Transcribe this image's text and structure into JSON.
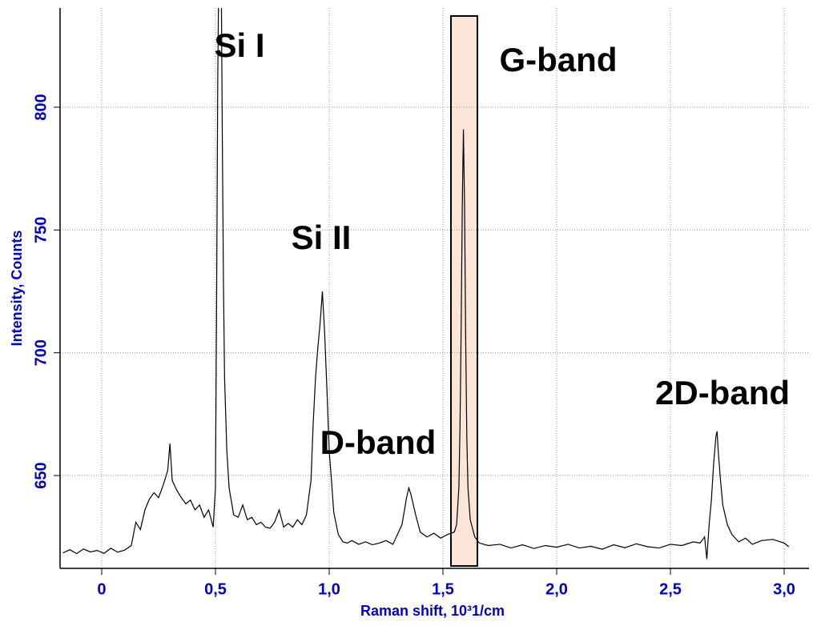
{
  "chart_data": {
    "type": "line",
    "x_label": "Raman shift, 10³1/cm",
    "y_label": "Intensity, Counts",
    "annotations": [
      "Si I",
      "Si II",
      "D-band",
      "G-band",
      "2D-band"
    ],
    "x": [
      -0.17,
      -0.14,
      -0.11,
      -0.08,
      -0.05,
      -0.02,
      0.01,
      0.04,
      0.07,
      0.1,
      0.13,
      0.15,
      0.17,
      0.19,
      0.21,
      0.23,
      0.25,
      0.27,
      0.29,
      0.3,
      0.31,
      0.33,
      0.35,
      0.37,
      0.39,
      0.41,
      0.43,
      0.45,
      0.47,
      0.49,
      0.5,
      0.505,
      0.51,
      0.515,
      0.525,
      0.53,
      0.535,
      0.54,
      0.55,
      0.56,
      0.58,
      0.6,
      0.62,
      0.64,
      0.66,
      0.68,
      0.7,
      0.72,
      0.74,
      0.76,
      0.78,
      0.8,
      0.82,
      0.84,
      0.86,
      0.88,
      0.9,
      0.92,
      0.93,
      0.94,
      0.95,
      0.96,
      0.97,
      0.98,
      0.99,
      1.0,
      1.01,
      1.02,
      1.04,
      1.06,
      1.08,
      1.1,
      1.13,
      1.16,
      1.19,
      1.22,
      1.25,
      1.28,
      1.3,
      1.32,
      1.34,
      1.35,
      1.36,
      1.38,
      1.4,
      1.43,
      1.46,
      1.49,
      1.52,
      1.55,
      1.56,
      1.57,
      1.575,
      1.58,
      1.585,
      1.59,
      1.595,
      1.6,
      1.605,
      1.61,
      1.62,
      1.64,
      1.66,
      1.7,
      1.75,
      1.8,
      1.85,
      1.9,
      1.95,
      2.0,
      2.05,
      2.1,
      2.15,
      2.2,
      2.25,
      2.3,
      2.35,
      2.4,
      2.45,
      2.5,
      2.55,
      2.6,
      2.63,
      2.65,
      2.66,
      2.67,
      2.68,
      2.69,
      2.7,
      2.705,
      2.71,
      2.72,
      2.73,
      2.75,
      2.77,
      2.8,
      2.83,
      2.86,
      2.9,
      2.95,
      3.0,
      3.02
    ],
    "series": [
      {
        "color": "#000000",
        "values": [
          618.5,
          619.8,
          618.2,
          620.1,
          618.9,
          619.5,
          618.3,
          620.4,
          618.8,
          619.6,
          621.5,
          631,
          628,
          636,
          640.5,
          643,
          641,
          646,
          652,
          663,
          648,
          644,
          641,
          638.5,
          640,
          636,
          638,
          633,
          636,
          629,
          645,
          720,
          810,
          860,
          860,
          790,
          730,
          690,
          660,
          645,
          634,
          633,
          638,
          632,
          633,
          630,
          631,
          629,
          628.5,
          631,
          636,
          629,
          630.5,
          629,
          632,
          630,
          634,
          648,
          672,
          690,
          702,
          712,
          725,
          708,
          685,
          660,
          648,
          635,
          626,
          623,
          622.5,
          623.5,
          622,
          623,
          621.8,
          622.5,
          623.5,
          622,
          626,
          630,
          641,
          645,
          642,
          634,
          627,
          625,
          626.5,
          624.5,
          626,
          627,
          630,
          645,
          670,
          710,
          760,
          791,
          760,
          705,
          665,
          645,
          632,
          625,
          622.5,
          621.5,
          622,
          620.5,
          621.8,
          620.3,
          621.5,
          620.8,
          622,
          620.5,
          621.2,
          620,
          621.8,
          620.6,
          622.2,
          621,
          620.5,
          622,
          621.5,
          623,
          622.5,
          625,
          616,
          630,
          640,
          655,
          666,
          668,
          660,
          648,
          638,
          630,
          626,
          623,
          624.5,
          622,
          623.5,
          624,
          622.5,
          621
        ]
      }
    ],
    "xlim": [
      -0.183,
      3.109
    ],
    "ylim": [
      612.2,
      840.4
    ],
    "xticks": [
      0,
      {
        "value": 0.5,
        "label": "0,5"
      },
      {
        "value": 1.0,
        "label": "1,0"
      },
      {
        "value": 1.5,
        "label": "1,5"
      },
      {
        "value": 2.0,
        "label": "2,0"
      },
      {
        "value": 2.5,
        "label": "2,5"
      },
      {
        "value": 3.0,
        "label": "3,0"
      }
    ],
    "yticks": [
      650,
      700,
      750,
      800
    ],
    "grid": true
  }
}
